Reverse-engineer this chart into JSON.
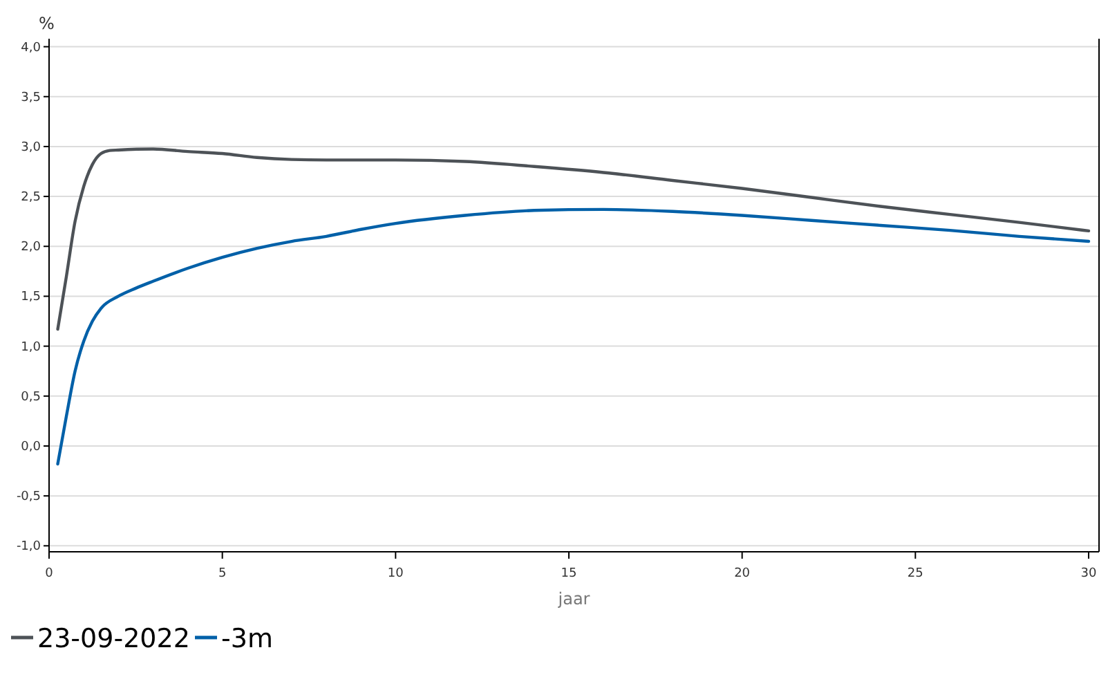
{
  "chart_data": {
    "type": "line",
    "ylabel": "%",
    "xlabel": "jaar",
    "xlim": [
      0,
      30.3
    ],
    "ylim": [
      -1.06,
      4.08
    ],
    "xticks": [
      0,
      5,
      10,
      15,
      20,
      25,
      30
    ],
    "yticks": [
      {
        "value": -1,
        "label": "-1,0"
      },
      {
        "value": -0.5,
        "label": "-0,5"
      },
      {
        "value": 0,
        "label": "0,0"
      },
      {
        "value": 0.5,
        "label": "0,5"
      },
      {
        "value": 1,
        "label": "1,0"
      },
      {
        "value": 1.5,
        "label": "1,5"
      },
      {
        "value": 2,
        "label": "2,0"
      },
      {
        "value": 2.5,
        "label": "2,5"
      },
      {
        "value": 3,
        "label": "3,0"
      },
      {
        "value": 3.5,
        "label": "3,5"
      },
      {
        "value": 4,
        "label": "4,0"
      }
    ],
    "grid": "y",
    "legend": "bottom left",
    "marker": "none",
    "line_style": "solid",
    "series": [
      {
        "name": "23-09-2022",
        "color": "#4d5257",
        "x": [
          0.25,
          0.5,
          0.75,
          1,
          1.25,
          1.5,
          1.75,
          2,
          3,
          4,
          5,
          6,
          7,
          8,
          10,
          12,
          14,
          16,
          18,
          20,
          22,
          24,
          26,
          28,
          30
        ],
        "values": [
          1.17,
          1.7,
          2.25,
          2.6,
          2.82,
          2.93,
          2.96,
          2.965,
          2.975,
          2.95,
          2.93,
          2.89,
          2.87,
          2.865,
          2.865,
          2.85,
          2.8,
          2.74,
          2.66,
          2.58,
          2.49,
          2.4,
          2.32,
          2.24,
          2.155
        ]
      },
      {
        "name": "-3m",
        "color": "#0060a8",
        "x": [
          0.25,
          0.5,
          0.75,
          1,
          1.25,
          1.5,
          2,
          2.5,
          3,
          4,
          5,
          6,
          7,
          8,
          9,
          10,
          12,
          14,
          16,
          18,
          20,
          22,
          24,
          26,
          28,
          30
        ],
        "values": [
          -0.18,
          0.3,
          0.75,
          1.05,
          1.25,
          1.38,
          1.5,
          1.58,
          1.65,
          1.78,
          1.89,
          1.98,
          2.05,
          2.1,
          2.17,
          2.23,
          2.31,
          2.36,
          2.37,
          2.35,
          2.31,
          2.26,
          2.21,
          2.16,
          2.1,
          2.05
        ]
      }
    ]
  }
}
